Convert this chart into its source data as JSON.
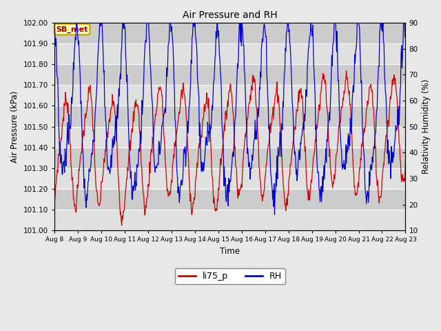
{
  "title": "Air Pressure and RH",
  "xlabel": "Time",
  "ylabel_left": "Air Pressure (kPa)",
  "ylabel_right": "Relativity Humidity (%)",
  "label_box": "SB_met",
  "ylim_left": [
    101.0,
    102.0
  ],
  "ylim_right": [
    10,
    90
  ],
  "yticks_left": [
    101.0,
    101.1,
    101.2,
    101.3,
    101.4,
    101.5,
    101.6,
    101.7,
    101.8,
    101.9,
    102.0
  ],
  "yticks_right": [
    10,
    20,
    30,
    40,
    50,
    60,
    70,
    80,
    90
  ],
  "xtick_labels": [
    "Aug 8",
    "Aug 9",
    "Aug 10",
    "Aug 11",
    "Aug 12",
    "Aug 13",
    "Aug 14",
    "Aug 15",
    "Aug 16",
    "Aug 17",
    "Aug 18",
    "Aug 19",
    "Aug 20",
    "Aug 21",
    "Aug 22",
    "Aug 23"
  ],
  "fig_bg_color": "#e8e8e8",
  "plot_bg_color_light": "#e0e0e0",
  "plot_bg_color_dark": "#cccccc",
  "grid_color": "#ffffff",
  "line_color_pressure": "#cc0000",
  "line_color_rh": "#0000cc",
  "legend_label_pressure": "li75_p",
  "legend_label_rh": "RH",
  "box_facecolor": "#ffffaa",
  "box_edgecolor": "#cc9900",
  "box_text_color": "#990000",
  "n_days": 15
}
